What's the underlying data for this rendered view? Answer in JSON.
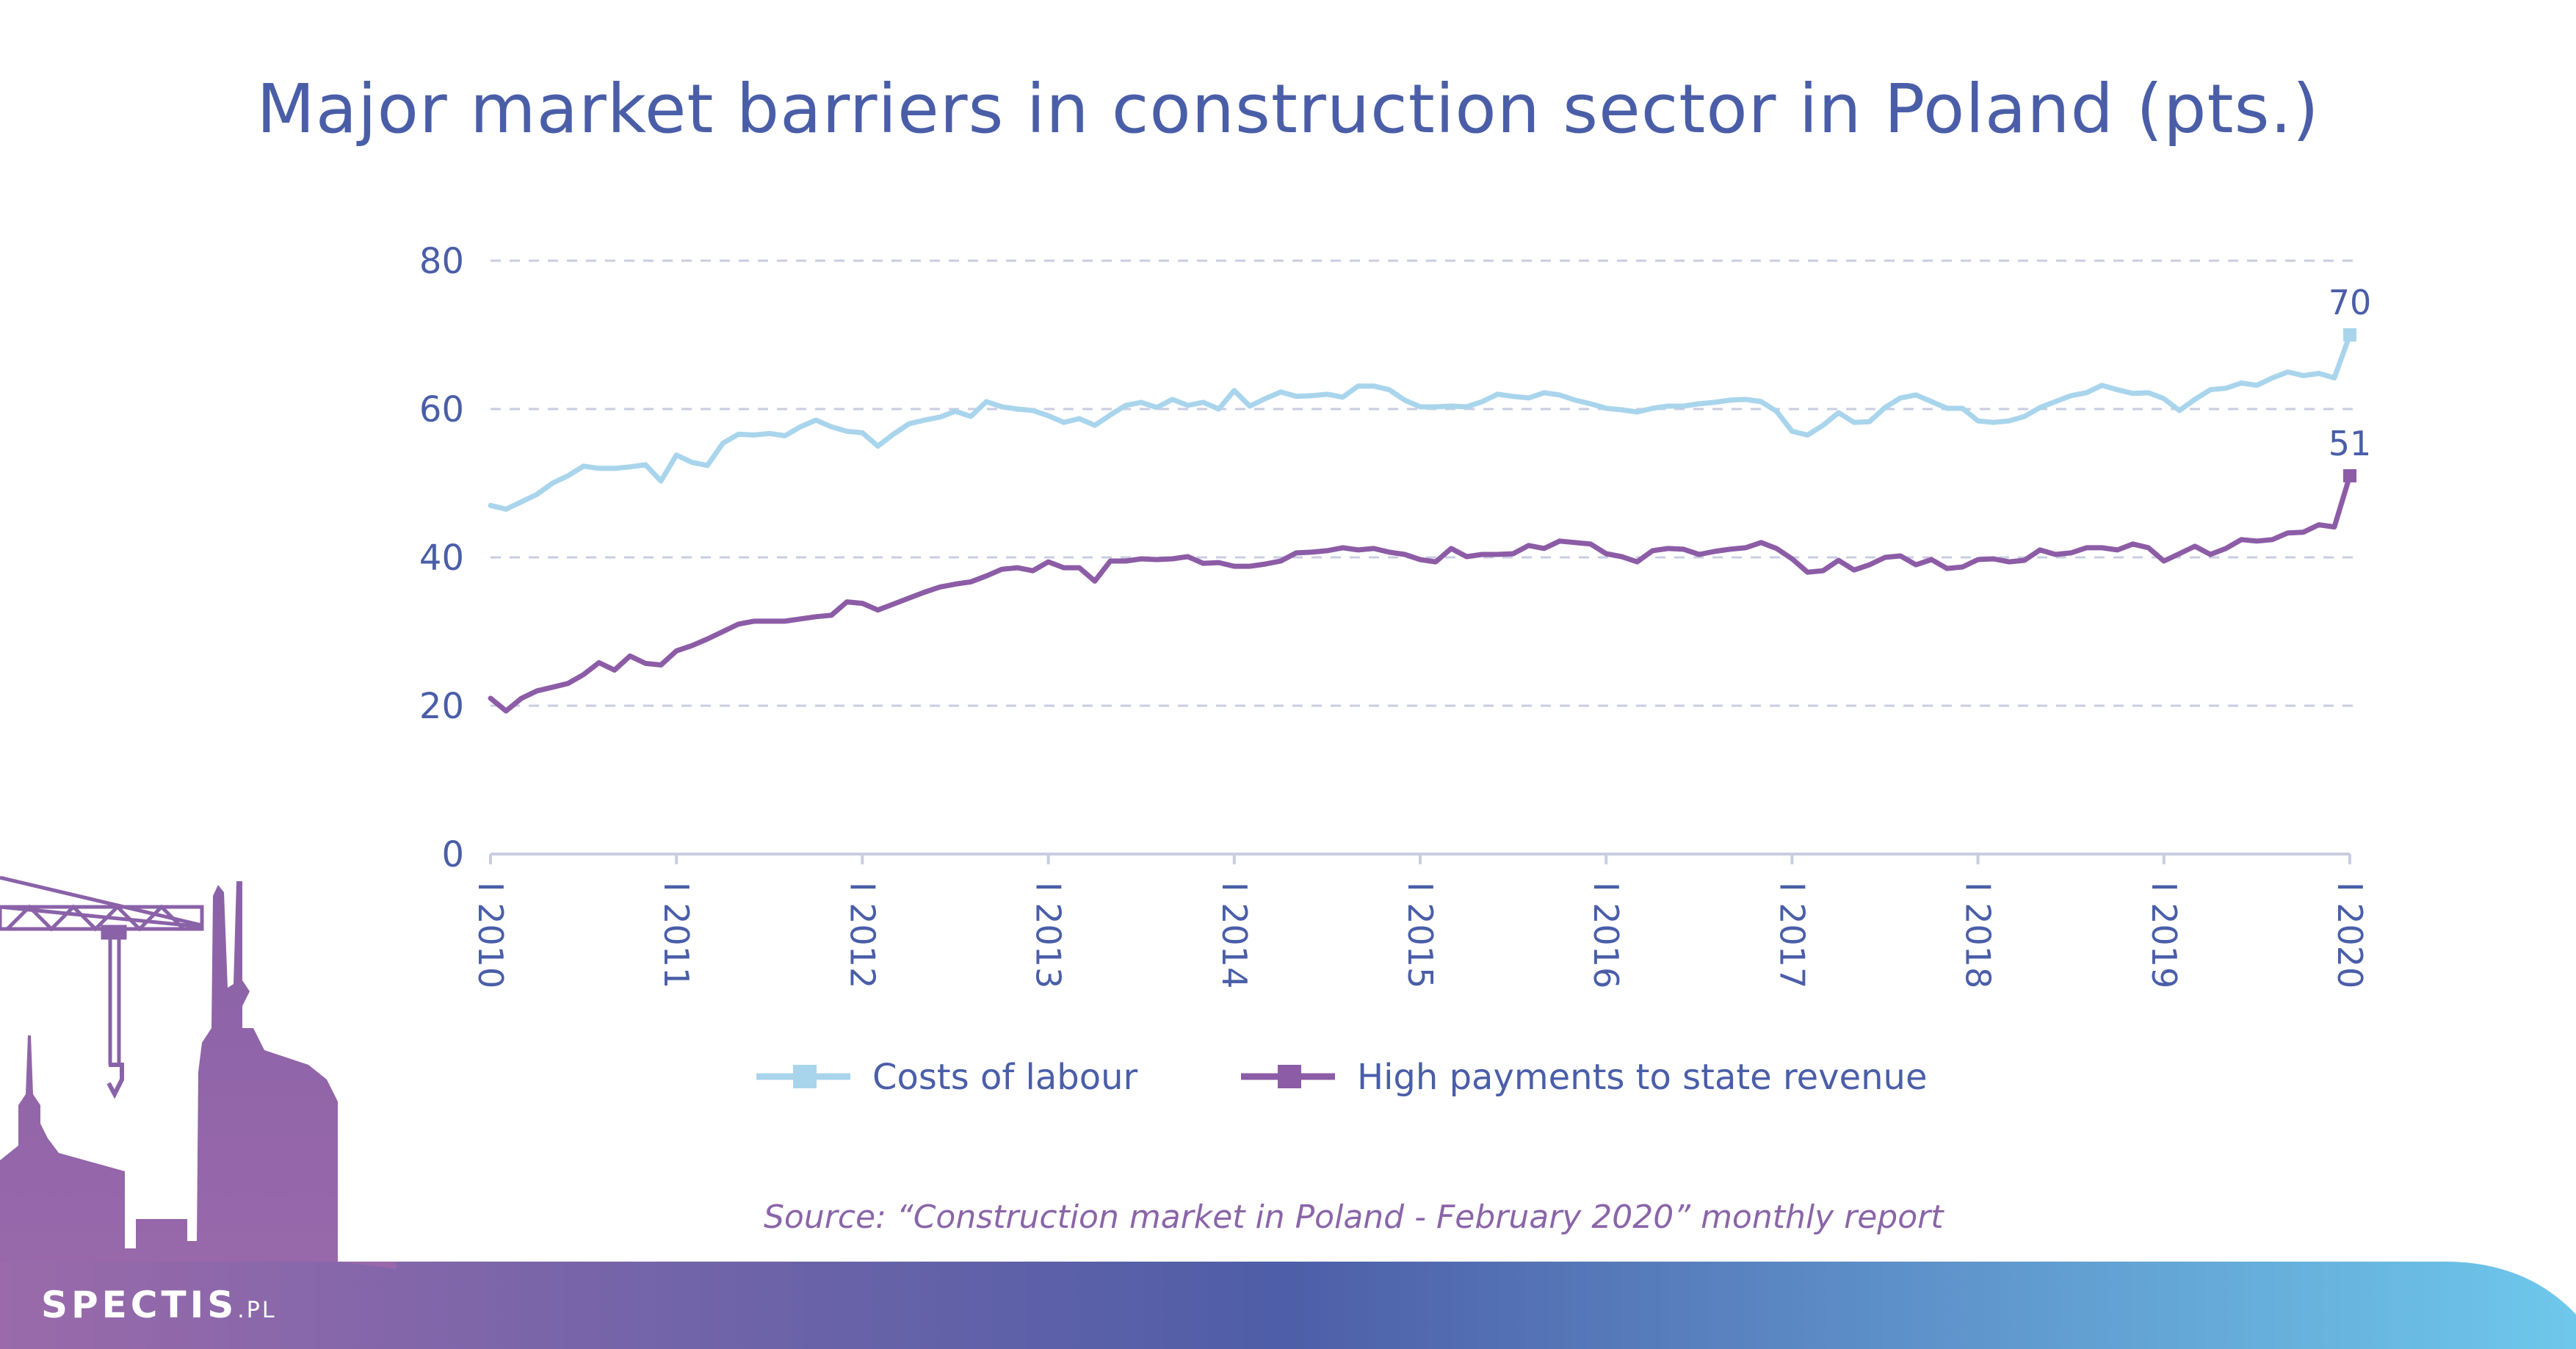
{
  "title": "Major market barriers in construction sector in Poland (pts.)",
  "source": "Source: “Construction market in Poland - February 2020” monthly report",
  "brand": {
    "name": "SPECTIS",
    "suffix": ".PL"
  },
  "colors": {
    "labour": "#a9d5ec",
    "payments": "#8c5ca6",
    "title": "#4a5ea8",
    "axis": "#4a5ea8",
    "grid": "#c9cde0"
  },
  "chart_data": {
    "type": "line",
    "title": "Major market barriers in construction sector in Poland (pts.)",
    "xlabel": "",
    "ylabel": "",
    "ylim": [
      0,
      80
    ],
    "yticks": [
      "0",
      "20",
      "40",
      "60",
      "80"
    ],
    "xticks": [
      "I 2010",
      "I 2011",
      "I 2012",
      "I 2013",
      "I 2014",
      "I 2015",
      "I 2016",
      "I 2017",
      "I 2018",
      "I 2019",
      "I 2020"
    ],
    "grid": "horizontal dashed",
    "legend": "bottom-center",
    "x_start": "2010-01",
    "x_end": "2020-01",
    "frequency": "monthly",
    "series": [
      {
        "name": "Costs of labour",
        "end_label": "70",
        "values": [
          47,
          46.5,
          47.5,
          48.5,
          50,
          51,
          52.3,
          52,
          52,
          52.2,
          52.5,
          50.3,
          53.8,
          52.8,
          52.4,
          55.4,
          56.6,
          56.5,
          56.7,
          56.4,
          57.6,
          58.5,
          57.6,
          57,
          56.8,
          55,
          56.6,
          58,
          58.5,
          58.9,
          59.7,
          59,
          61,
          60.3,
          60,
          59.8,
          59.1,
          58.2,
          58.7,
          57.8,
          59.2,
          60.5,
          60.9,
          60.2,
          61.3,
          60.5,
          60.9,
          60,
          62.5,
          60.4,
          61.4,
          62.3,
          61.7,
          61.8,
          62,
          61.6,
          63.1,
          63.1,
          62.6,
          61.2,
          60.3,
          60.3,
          60.4,
          60.3,
          61,
          62,
          61.7,
          61.5,
          62.2,
          61.9,
          61.2,
          60.7,
          60.1,
          59.9,
          59.6,
          60.1,
          60.4,
          60.4,
          60.7,
          60.9,
          61.2,
          61.3,
          61,
          59.7,
          57,
          56.5,
          57.8,
          59.5,
          58.2,
          58.3,
          60.2,
          61.5,
          61.9,
          61,
          60.1,
          60.1,
          58.4,
          58.2,
          58.4,
          59,
          60.2,
          61,
          61.8,
          62.2,
          63.2,
          62.6,
          62.1,
          62.2,
          61.4,
          59.8,
          61.3,
          62.6,
          62.8,
          63.5,
          63.2,
          64.2,
          65,
          64.5,
          64.8,
          64.2,
          70
        ]
      },
      {
        "name": "High payments to state revenue",
        "end_label": "51",
        "values": [
          21,
          19.3,
          21,
          22,
          22.5,
          23,
          24.2,
          25.8,
          24.8,
          26.7,
          25.7,
          25.5,
          27.4,
          28.1,
          29,
          30,
          31,
          31.4,
          31.4,
          31.4,
          31.7,
          32,
          32.2,
          34,
          33.8,
          32.9,
          33.7,
          34.5,
          35.3,
          36,
          36.4,
          36.7,
          37.5,
          38.4,
          38.6,
          38.2,
          39.4,
          38.6,
          38.6,
          36.8,
          39.5,
          39.5,
          39.8,
          39.7,
          39.8,
          40.1,
          39.2,
          39.3,
          38.8,
          38.8,
          39.1,
          39.5,
          40.6,
          40.7,
          40.9,
          41.3,
          41,
          41.2,
          40.7,
          40.4,
          39.7,
          39.4,
          41.2,
          40.1,
          40.4,
          40.4,
          40.5,
          41.6,
          41.2,
          42.2,
          42,
          41.8,
          40.5,
          40.1,
          39.4,
          40.9,
          41.2,
          41.1,
          40.4,
          40.8,
          41.1,
          41.3,
          42,
          41.2,
          39.8,
          38,
          38.2,
          39.6,
          38.3,
          39,
          40,
          40.2,
          39,
          39.7,
          38.5,
          38.7,
          39.7,
          39.8,
          39.4,
          39.6,
          41,
          40.4,
          40.6,
          41.3,
          41.3,
          41,
          41.8,
          41.3,
          39.5,
          40.5,
          41.5,
          40.4,
          41.2,
          42.4,
          42.2,
          42.4,
          43.3,
          43.4,
          44.4,
          44.1,
          51
        ]
      }
    ]
  }
}
